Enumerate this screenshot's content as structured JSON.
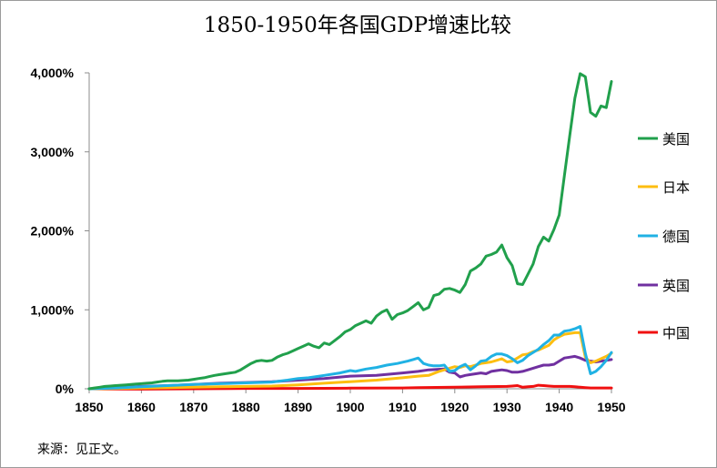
{
  "chart_data": {
    "type": "line",
    "title": "1850-1950年各国GDP增速比较",
    "source": "来源：见正文。",
    "xlabel": "",
    "ylabel": "",
    "xlim": [
      1850,
      1950
    ],
    "ylim": [
      0,
      4000
    ],
    "x_ticks": [
      1850,
      1860,
      1870,
      1880,
      1890,
      1900,
      1910,
      1920,
      1930,
      1940,
      1950
    ],
    "y_ticks": [
      0,
      1000,
      2000,
      3000,
      4000
    ],
    "y_tick_labels": [
      "0%",
      "1,000%",
      "2,000%",
      "3,000%",
      "4,000%"
    ],
    "legend_position": "right",
    "grid": false,
    "series": [
      {
        "name": "美国",
        "color": "#21a04c",
        "points": [
          [
            1850,
            0
          ],
          [
            1851,
            10
          ],
          [
            1852,
            20
          ],
          [
            1853,
            30
          ],
          [
            1854,
            35
          ],
          [
            1855,
            40
          ],
          [
            1856,
            45
          ],
          [
            1857,
            50
          ],
          [
            1858,
            55
          ],
          [
            1859,
            60
          ],
          [
            1860,
            65
          ],
          [
            1861,
            70
          ],
          [
            1862,
            75
          ],
          [
            1863,
            85
          ],
          [
            1864,
            95
          ],
          [
            1865,
            100
          ],
          [
            1866,
            100
          ],
          [
            1867,
            100
          ],
          [
            1868,
            105
          ],
          [
            1869,
            110
          ],
          [
            1870,
            120
          ],
          [
            1871,
            130
          ],
          [
            1872,
            140
          ],
          [
            1873,
            155
          ],
          [
            1874,
            170
          ],
          [
            1875,
            180
          ],
          [
            1876,
            190
          ],
          [
            1877,
            200
          ],
          [
            1878,
            210
          ],
          [
            1879,
            240
          ],
          [
            1880,
            280
          ],
          [
            1881,
            320
          ],
          [
            1882,
            350
          ],
          [
            1883,
            360
          ],
          [
            1884,
            350
          ],
          [
            1885,
            360
          ],
          [
            1886,
            400
          ],
          [
            1887,
            430
          ],
          [
            1888,
            450
          ],
          [
            1889,
            480
          ],
          [
            1890,
            510
          ],
          [
            1891,
            540
          ],
          [
            1892,
            570
          ],
          [
            1893,
            540
          ],
          [
            1894,
            520
          ],
          [
            1895,
            580
          ],
          [
            1896,
            560
          ],
          [
            1897,
            610
          ],
          [
            1898,
            660
          ],
          [
            1899,
            720
          ],
          [
            1900,
            750
          ],
          [
            1901,
            800
          ],
          [
            1902,
            830
          ],
          [
            1903,
            860
          ],
          [
            1904,
            830
          ],
          [
            1905,
            920
          ],
          [
            1906,
            970
          ],
          [
            1907,
            1000
          ],
          [
            1908,
            880
          ],
          [
            1909,
            940
          ],
          [
            1910,
            960
          ],
          [
            1911,
            990
          ],
          [
            1912,
            1040
          ],
          [
            1913,
            1090
          ],
          [
            1914,
            1000
          ],
          [
            1915,
            1030
          ],
          [
            1916,
            1180
          ],
          [
            1917,
            1200
          ],
          [
            1918,
            1260
          ],
          [
            1919,
            1270
          ],
          [
            1920,
            1250
          ],
          [
            1921,
            1220
          ],
          [
            1922,
            1320
          ],
          [
            1923,
            1490
          ],
          [
            1924,
            1530
          ],
          [
            1925,
            1580
          ],
          [
            1926,
            1680
          ],
          [
            1927,
            1700
          ],
          [
            1928,
            1730
          ],
          [
            1929,
            1820
          ],
          [
            1930,
            1660
          ],
          [
            1931,
            1560
          ],
          [
            1932,
            1330
          ],
          [
            1933,
            1320
          ],
          [
            1934,
            1450
          ],
          [
            1935,
            1580
          ],
          [
            1936,
            1800
          ],
          [
            1937,
            1920
          ],
          [
            1938,
            1870
          ],
          [
            1939,
            2020
          ],
          [
            1940,
            2200
          ],
          [
            1941,
            2700
          ],
          [
            1942,
            3200
          ],
          [
            1943,
            3680
          ],
          [
            1944,
            3990
          ],
          [
            1945,
            3950
          ],
          [
            1946,
            3500
          ],
          [
            1947,
            3450
          ],
          [
            1948,
            3580
          ],
          [
            1949,
            3560
          ],
          [
            1950,
            3890
          ]
        ]
      },
      {
        "name": "日本",
        "color": "#fdbe10",
        "points": [
          [
            1850,
            0
          ],
          [
            1855,
            5
          ],
          [
            1860,
            10
          ],
          [
            1865,
            15
          ],
          [
            1870,
            20
          ],
          [
            1875,
            25
          ],
          [
            1880,
            30
          ],
          [
            1885,
            35
          ],
          [
            1890,
            50
          ],
          [
            1895,
            70
          ],
          [
            1900,
            90
          ],
          [
            1905,
            110
          ],
          [
            1910,
            140
          ],
          [
            1913,
            160
          ],
          [
            1915,
            170
          ],
          [
            1917,
            220
          ],
          [
            1919,
            260
          ],
          [
            1920,
            280
          ],
          [
            1921,
            270
          ],
          [
            1922,
            290
          ],
          [
            1923,
            280
          ],
          [
            1924,
            300
          ],
          [
            1925,
            320
          ],
          [
            1926,
            330
          ],
          [
            1927,
            340
          ],
          [
            1928,
            360
          ],
          [
            1929,
            380
          ],
          [
            1930,
            340
          ],
          [
            1931,
            350
          ],
          [
            1932,
            390
          ],
          [
            1933,
            430
          ],
          [
            1934,
            440
          ],
          [
            1935,
            470
          ],
          [
            1936,
            490
          ],
          [
            1937,
            520
          ],
          [
            1938,
            550
          ],
          [
            1939,
            620
          ],
          [
            1940,
            660
          ],
          [
            1941,
            690
          ],
          [
            1942,
            700
          ],
          [
            1943,
            710
          ],
          [
            1944,
            710
          ],
          [
            1945,
            400
          ],
          [
            1946,
            330
          ],
          [
            1947,
            350
          ],
          [
            1948,
            380
          ],
          [
            1949,
            410
          ],
          [
            1950,
            450
          ]
        ]
      },
      {
        "name": "德国",
        "color": "#20b2e4",
        "points": [
          [
            1850,
            0
          ],
          [
            1855,
            10
          ],
          [
            1860,
            25
          ],
          [
            1865,
            40
          ],
          [
            1870,
            55
          ],
          [
            1875,
            65
          ],
          [
            1880,
            75
          ],
          [
            1885,
            85
          ],
          [
            1888,
            110
          ],
          [
            1890,
            130
          ],
          [
            1892,
            140
          ],
          [
            1895,
            170
          ],
          [
            1898,
            200
          ],
          [
            1900,
            230
          ],
          [
            1901,
            220
          ],
          [
            1903,
            250
          ],
          [
            1905,
            270
          ],
          [
            1907,
            300
          ],
          [
            1909,
            320
          ],
          [
            1911,
            350
          ],
          [
            1912,
            370
          ],
          [
            1913,
            390
          ],
          [
            1914,
            320
          ],
          [
            1915,
            300
          ],
          [
            1916,
            290
          ],
          [
            1917,
            290
          ],
          [
            1918,
            300
          ],
          [
            1919,
            220
          ],
          [
            1920,
            230
          ],
          [
            1921,
            280
          ],
          [
            1922,
            310
          ],
          [
            1923,
            240
          ],
          [
            1924,
            290
          ],
          [
            1925,
            350
          ],
          [
            1926,
            360
          ],
          [
            1927,
            410
          ],
          [
            1928,
            440
          ],
          [
            1929,
            440
          ],
          [
            1930,
            420
          ],
          [
            1931,
            380
          ],
          [
            1932,
            330
          ],
          [
            1933,
            360
          ],
          [
            1934,
            420
          ],
          [
            1935,
            460
          ],
          [
            1936,
            500
          ],
          [
            1937,
            560
          ],
          [
            1938,
            610
          ],
          [
            1939,
            680
          ],
          [
            1940,
            680
          ],
          [
            1941,
            730
          ],
          [
            1942,
            740
          ],
          [
            1943,
            760
          ],
          [
            1944,
            790
          ],
          [
            1945,
            450
          ],
          [
            1946,
            190
          ],
          [
            1947,
            220
          ],
          [
            1948,
            280
          ],
          [
            1949,
            360
          ],
          [
            1950,
            460
          ]
        ]
      },
      {
        "name": "英国",
        "color": "#7030a0",
        "points": [
          [
            1850,
            0
          ],
          [
            1855,
            15
          ],
          [
            1860,
            30
          ],
          [
            1865,
            40
          ],
          [
            1870,
            55
          ],
          [
            1875,
            70
          ],
          [
            1880,
            80
          ],
          [
            1885,
            90
          ],
          [
            1890,
            110
          ],
          [
            1895,
            130
          ],
          [
            1900,
            160
          ],
          [
            1905,
            170
          ],
          [
            1910,
            200
          ],
          [
            1913,
            220
          ],
          [
            1915,
            240
          ],
          [
            1918,
            250
          ],
          [
            1919,
            210
          ],
          [
            1920,
            200
          ],
          [
            1921,
            150
          ],
          [
            1922,
            170
          ],
          [
            1923,
            180
          ],
          [
            1924,
            190
          ],
          [
            1925,
            200
          ],
          [
            1926,
            190
          ],
          [
            1927,
            220
          ],
          [
            1928,
            230
          ],
          [
            1929,
            240
          ],
          [
            1930,
            230
          ],
          [
            1931,
            210
          ],
          [
            1932,
            210
          ],
          [
            1933,
            220
          ],
          [
            1934,
            240
          ],
          [
            1935,
            260
          ],
          [
            1936,
            280
          ],
          [
            1937,
            300
          ],
          [
            1938,
            300
          ],
          [
            1939,
            310
          ],
          [
            1940,
            350
          ],
          [
            1941,
            390
          ],
          [
            1942,
            400
          ],
          [
            1943,
            410
          ],
          [
            1944,
            390
          ],
          [
            1945,
            360
          ],
          [
            1946,
            350
          ],
          [
            1947,
            340
          ],
          [
            1948,
            350
          ],
          [
            1949,
            360
          ],
          [
            1950,
            370
          ]
        ]
      },
      {
        "name": "中国",
        "color": "#f01010",
        "points": [
          [
            1850,
            0
          ],
          [
            1860,
            -5
          ],
          [
            1870,
            0
          ],
          [
            1880,
            5
          ],
          [
            1890,
            5
          ],
          [
            1900,
            8
          ],
          [
            1910,
            10
          ],
          [
            1913,
            15
          ],
          [
            1920,
            20
          ],
          [
            1925,
            25
          ],
          [
            1930,
            30
          ],
          [
            1931,
            35
          ],
          [
            1932,
            40
          ],
          [
            1933,
            20
          ],
          [
            1934,
            25
          ],
          [
            1935,
            30
          ],
          [
            1936,
            45
          ],
          [
            1937,
            40
          ],
          [
            1938,
            35
          ],
          [
            1939,
            30
          ],
          [
            1940,
            30
          ],
          [
            1941,
            30
          ],
          [
            1942,
            30
          ],
          [
            1943,
            25
          ],
          [
            1944,
            20
          ],
          [
            1945,
            15
          ],
          [
            1946,
            10
          ],
          [
            1947,
            10
          ],
          [
            1948,
            10
          ],
          [
            1949,
            10
          ],
          [
            1950,
            10
          ]
        ]
      }
    ]
  }
}
